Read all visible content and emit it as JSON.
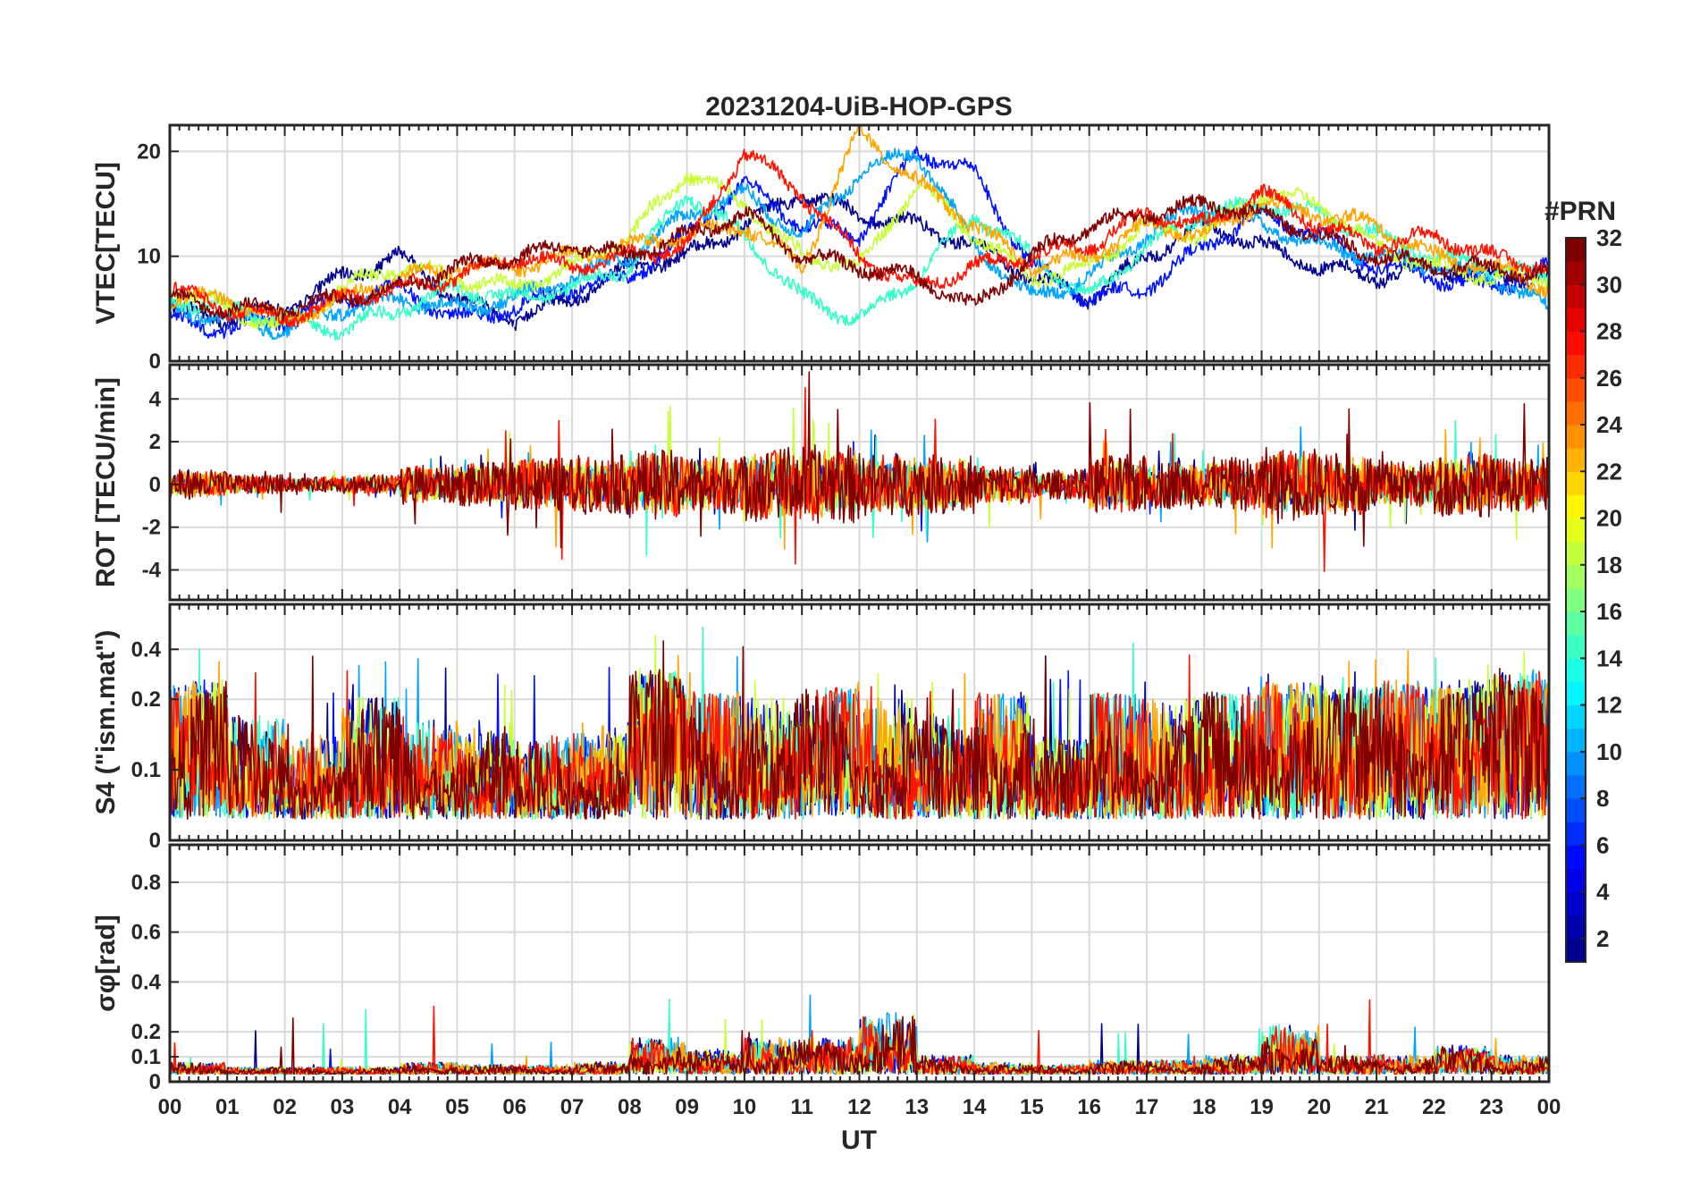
{
  "chart_data": {
    "type": "line",
    "title": "20231204-UiB-HOP-GPS",
    "xlabel": "UT",
    "x_tick_labels": [
      "00",
      "01",
      "02",
      "03",
      "04",
      "05",
      "06",
      "07",
      "08",
      "09",
      "10",
      "11",
      "12",
      "13",
      "14",
      "15",
      "16",
      "17",
      "18",
      "19",
      "20",
      "21",
      "22",
      "23",
      "00"
    ],
    "xlim_hours": [
      0,
      24
    ],
    "colorbar": {
      "label": "#PRN",
      "range": [
        1,
        32
      ],
      "ticks": [
        "2",
        "4",
        "6",
        "8",
        "10",
        "12",
        "14",
        "16",
        "18",
        "20",
        "22",
        "24",
        "26",
        "28",
        "30",
        "32"
      ],
      "colormap": "jet",
      "colors": [
        "#00008f",
        "#0000ff",
        "#0080ff",
        "#00ffff",
        "#80ff80",
        "#ffff00",
        "#ff8000",
        "#ff0000",
        "#800000"
      ]
    },
    "panels": [
      {
        "id": "vtec",
        "ylabel": "VTEC[TECU]",
        "ylim": [
          0,
          22.5
        ],
        "y_ticks": [
          0,
          10,
          20
        ],
        "y_tick_labels": [
          "0",
          "10",
          "20"
        ],
        "series_summary": [
          {
            "prn_group": "dark-blue",
            "values": [
              5,
              4,
              5,
              8,
              10,
              6,
              4,
              6,
              9,
              10,
              13,
              16,
              14,
              13,
              11,
              8,
              6,
              10,
              13,
              11,
              9,
              8,
              9,
              8,
              8
            ]
          },
          {
            "prn_group": "blue",
            "values": [
              4,
              3,
              4,
              6,
              7,
              4,
              5,
              7,
              8,
              12,
              17,
              13,
              12,
              20,
              18,
              9,
              6,
              7,
              11,
              14,
              12,
              9,
              8,
              7,
              9
            ]
          },
          {
            "prn_group": "cyan",
            "values": [
              5,
              4,
              3,
              5,
              6,
              5,
              6,
              8,
              10,
              14,
              16,
              12,
              18,
              20,
              11,
              6,
              8,
              12,
              15,
              13,
              11,
              10,
              9,
              8,
              5
            ]
          },
          {
            "prn_group": "green",
            "values": [
              6,
              5,
              4,
              3,
              5,
              7,
              6,
              7,
              9,
              16,
              12,
              6,
              4,
              8,
              14,
              10,
              6,
              11,
              14,
              15,
              14,
              12,
              10,
              9,
              8
            ]
          },
          {
            "prn_group": "yellow",
            "values": [
              7,
              5,
              3,
              7,
              9,
              8,
              7,
              9,
              12,
              18,
              15,
              10,
              9,
              17,
              12,
              8,
              9,
              13,
              12,
              16,
              15,
              11,
              9,
              8,
              8
            ]
          },
          {
            "prn_group": "orange",
            "values": [
              6,
              6,
              4,
              6,
              8,
              9,
              9,
              10,
              11,
              12,
              13,
              9,
              22,
              17,
              13,
              9,
              10,
              13,
              12,
              15,
              14,
              13,
              10,
              9,
              7
            ]
          },
          {
            "prn_group": "red",
            "values": [
              7,
              5,
              4,
              6,
              7,
              8,
              10,
              9,
              10,
              11,
              20,
              16,
              10,
              7,
              9,
              10,
              11,
              14,
              13,
              16,
              13,
              11,
              12,
              10,
              9
            ]
          },
          {
            "prn_group": "dark-red",
            "values": [
              6,
              5,
              5,
              6,
              7,
              9,
              10,
              11,
              10,
              12,
              14,
              10,
              9,
              8,
              5,
              10,
              13,
              14,
              15,
              14,
              12,
              10,
              9,
              9,
              8
            ]
          }
        ]
      },
      {
        "id": "rot",
        "ylabel": "ROT [TECU/min]",
        "ylim": [
          -5.4,
          5.6
        ],
        "y_ticks": [
          -4,
          -2,
          0,
          2,
          4
        ],
        "y_tick_labels": [
          "-4",
          "-2",
          "0",
          "2",
          "4"
        ],
        "noise_amplitude_by_hour": [
          0.6,
          0.4,
          0.3,
          0.4,
          0.8,
          0.9,
          1.1,
          1.2,
          1.4,
          1.2,
          1.5,
          1.6,
          1.3,
          1.2,
          0.8,
          0.6,
          1.2,
          1.0,
          1.1,
          1.5,
          1.3,
          1.0,
          1.3,
          1.1
        ]
      },
      {
        "id": "s4",
        "ylabel": "S4 (\"ism.mat\")",
        "ylim": [
          0,
          0.58
        ],
        "y_ticks": [
          0,
          0.1,
          0.2,
          0.4
        ],
        "y_tick_labels": [
          "0",
          "0.1",
          "0.2",
          "0.4"
        ],
        "activity_by_hour": [
          0.25,
          0.15,
          0.12,
          0.18,
          0.15,
          0.14,
          0.12,
          0.14,
          0.3,
          0.2,
          0.18,
          0.22,
          0.18,
          0.15,
          0.2,
          0.12,
          0.2,
          0.18,
          0.2,
          0.25,
          0.22,
          0.25,
          0.25,
          0.3
        ]
      },
      {
        "id": "sigma",
        "ylabel": "σφ[rad]",
        "ylim": [
          0,
          0.95
        ],
        "y_ticks": [
          0,
          0.1,
          0.2,
          0.4,
          0.6,
          0.8
        ],
        "y_tick_labels": [
          "0",
          "0.1",
          "0.2",
          "0.4",
          "0.6",
          "0.8"
        ],
        "activity_by_hour": [
          0.05,
          0.03,
          0.03,
          0.03,
          0.05,
          0.04,
          0.04,
          0.05,
          0.15,
          0.1,
          0.15,
          0.15,
          0.25,
          0.08,
          0.05,
          0.04,
          0.06,
          0.06,
          0.08,
          0.2,
          0.08,
          0.08,
          0.12,
          0.08
        ]
      }
    ]
  }
}
